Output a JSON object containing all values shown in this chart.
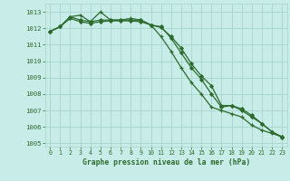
{
  "line1": {
    "x": [
      0,
      1,
      2,
      3,
      4,
      5,
      6,
      7,
      8,
      9,
      10,
      11,
      12,
      13,
      14,
      15,
      16,
      17,
      18,
      19,
      20,
      21,
      22,
      23
    ],
    "y": [
      1011.8,
      1012.1,
      1012.7,
      1012.8,
      1012.4,
      1013.0,
      1012.5,
      1012.5,
      1012.6,
      1012.5,
      1012.2,
      1011.5,
      1010.6,
      1009.6,
      1008.7,
      1008.0,
      1007.2,
      1007.0,
      1006.8,
      1006.6,
      1006.1,
      1005.8,
      1005.6,
      1005.4
    ],
    "color": "#2d6a2d",
    "marker": "+"
  },
  "line2": {
    "x": [
      0,
      1,
      2,
      3,
      4,
      5,
      6,
      7,
      8,
      9,
      10,
      11,
      12,
      13,
      14,
      15,
      16,
      17,
      18,
      19,
      20,
      21,
      22,
      23
    ],
    "y": [
      1011.8,
      1012.1,
      1012.6,
      1012.4,
      1012.3,
      1012.4,
      1012.45,
      1012.45,
      1012.45,
      1012.4,
      1012.2,
      1012.1,
      1011.4,
      1010.5,
      1009.6,
      1008.9,
      1008.0,
      1007.2,
      1007.3,
      1007.0,
      1006.6,
      1006.2,
      1005.7,
      1005.4
    ],
    "color": "#2d6a2d",
    "marker": "D"
  },
  "line3": {
    "x": [
      0,
      1,
      2,
      3,
      4,
      5,
      6,
      7,
      8,
      9,
      10,
      11,
      12,
      13,
      14,
      15,
      16,
      17,
      18,
      19,
      20,
      21,
      22,
      23
    ],
    "y": [
      1011.8,
      1012.1,
      1012.7,
      1012.5,
      1012.4,
      1012.5,
      1012.5,
      1012.5,
      1012.5,
      1012.5,
      1012.2,
      1012.05,
      1011.5,
      1010.8,
      1009.85,
      1009.1,
      1008.5,
      1007.3,
      1007.3,
      1007.1,
      1006.7,
      1006.2,
      1005.7,
      1005.35
    ],
    "color": "#2d6a2d",
    "marker": "D"
  },
  "bg_color": "#c8ede8",
  "grid_color": "#a8d5cc",
  "line_color": "#2d6a2d",
  "title": "Graphe pression niveau de la mer (hPa)",
  "ylim": [
    1004.8,
    1013.5
  ],
  "xlim": [
    -0.5,
    23.5
  ],
  "yticks": [
    1005,
    1006,
    1007,
    1008,
    1009,
    1010,
    1011,
    1012,
    1013
  ],
  "xticks": [
    0,
    1,
    2,
    3,
    4,
    5,
    6,
    7,
    8,
    9,
    10,
    11,
    12,
    13,
    14,
    15,
    16,
    17,
    18,
    19,
    20,
    21,
    22,
    23
  ]
}
